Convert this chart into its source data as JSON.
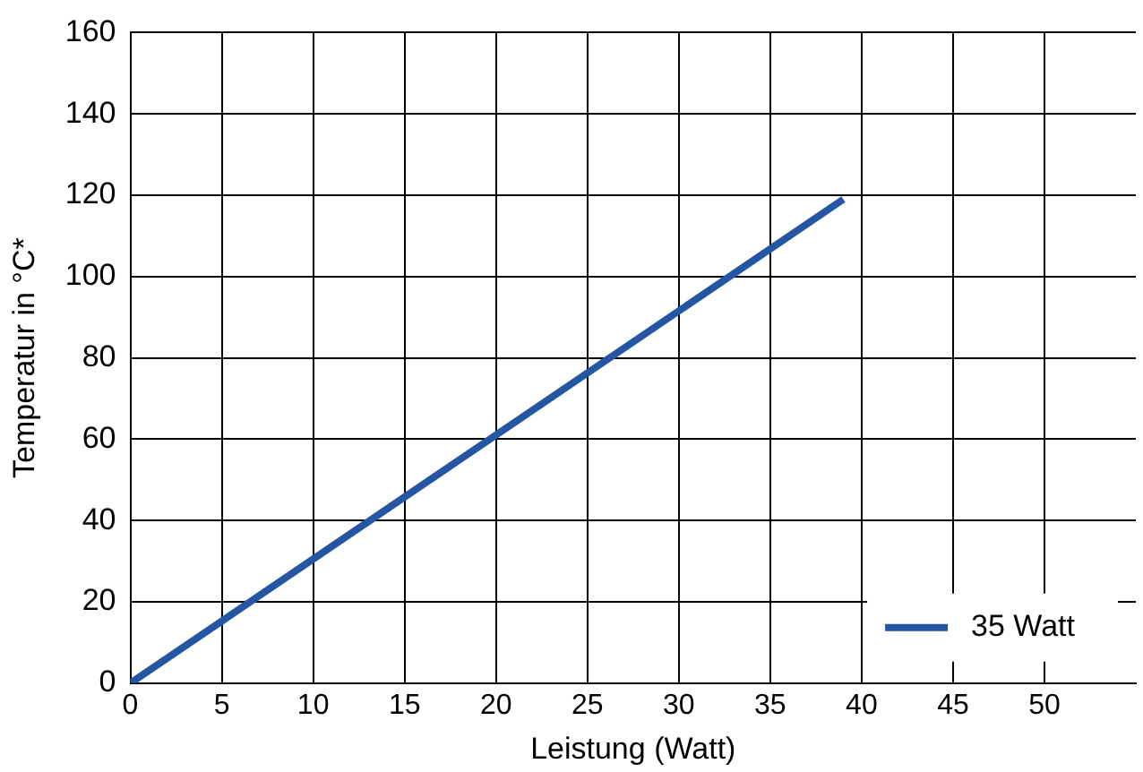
{
  "chart_data": {
    "type": "line",
    "xlabel": "Leistung (Watt)",
    "ylabel": "Temperatur in °C*",
    "x": [
      0,
      39
    ],
    "series": [
      {
        "name": "35 Watt",
        "color": "#2456a4",
        "values": [
          0,
          119
        ]
      }
    ],
    "xlim": [
      0,
      55
    ],
    "xticks": [
      0,
      5,
      10,
      15,
      20,
      25,
      30,
      35,
      40,
      45,
      50
    ],
    "ylim": [
      0,
      160
    ],
    "yticks": [
      0,
      20,
      40,
      60,
      80,
      100,
      120,
      140,
      160
    ],
    "grid": true,
    "legend": "bottom right",
    "marker": "none",
    "line_style": "solid"
  }
}
